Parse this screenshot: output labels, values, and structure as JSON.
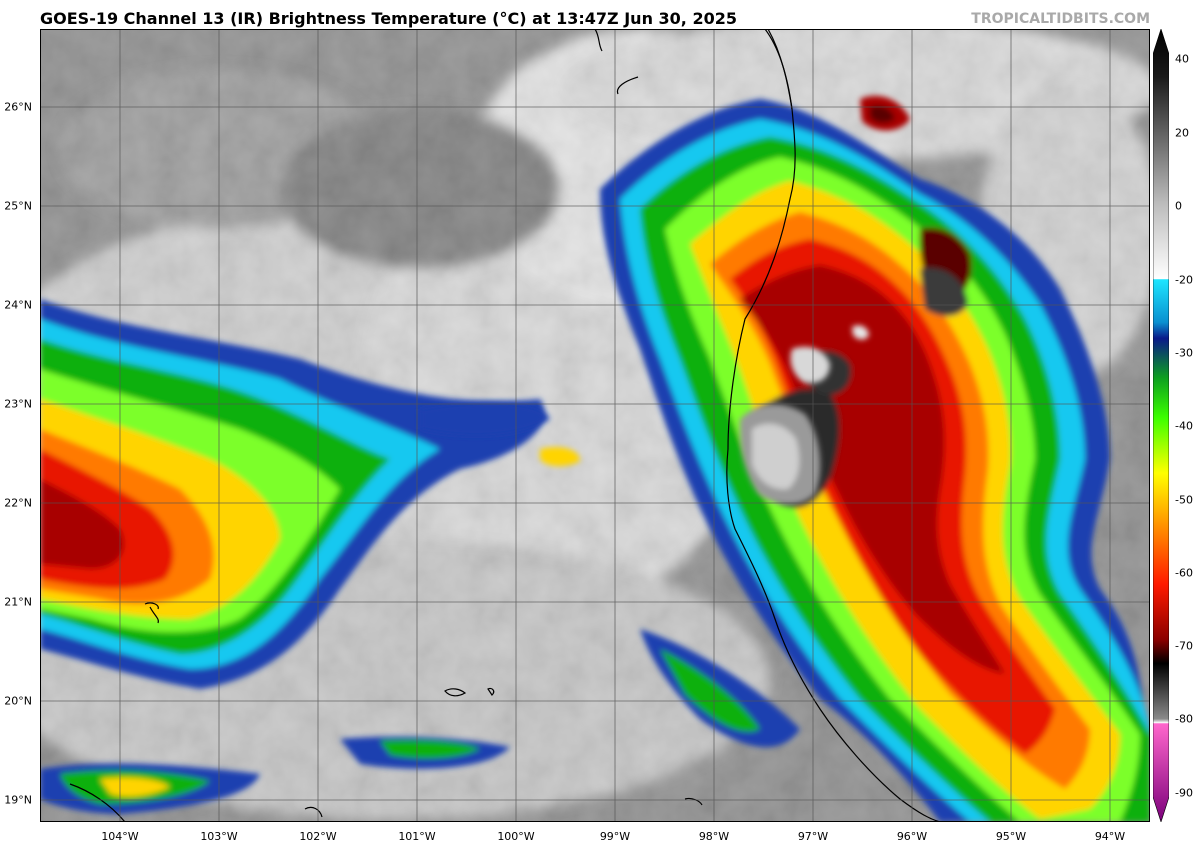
{
  "header": {
    "title": "GOES-19 Channel 13 (IR) Brightness Temperature (°C) at 13:47Z Jun 30, 2025",
    "credit": "TROPICALTIDBITS.COM"
  },
  "map": {
    "lon_labels": [
      "104°W",
      "103°W",
      "102°W",
      "101°W",
      "100°W",
      "99°W",
      "98°W",
      "97°W",
      "96°W",
      "95°W",
      "94°W"
    ],
    "lat_labels": [
      "26°N",
      "25°N",
      "24°N",
      "23°N",
      "22°N",
      "21°N",
      "20°N",
      "19°N"
    ]
  },
  "colorbar": {
    "tick_labels": [
      "40",
      "20",
      "0",
      "-20",
      "-30",
      "-40",
      "-50",
      "-60",
      "-70",
      "-80",
      "-90"
    ]
  },
  "colors": {
    "gridline": "#555555",
    "coastline": "#000000",
    "clear_sky": "#8a8a8a",
    "deep_convection": "#8b0000"
  }
}
